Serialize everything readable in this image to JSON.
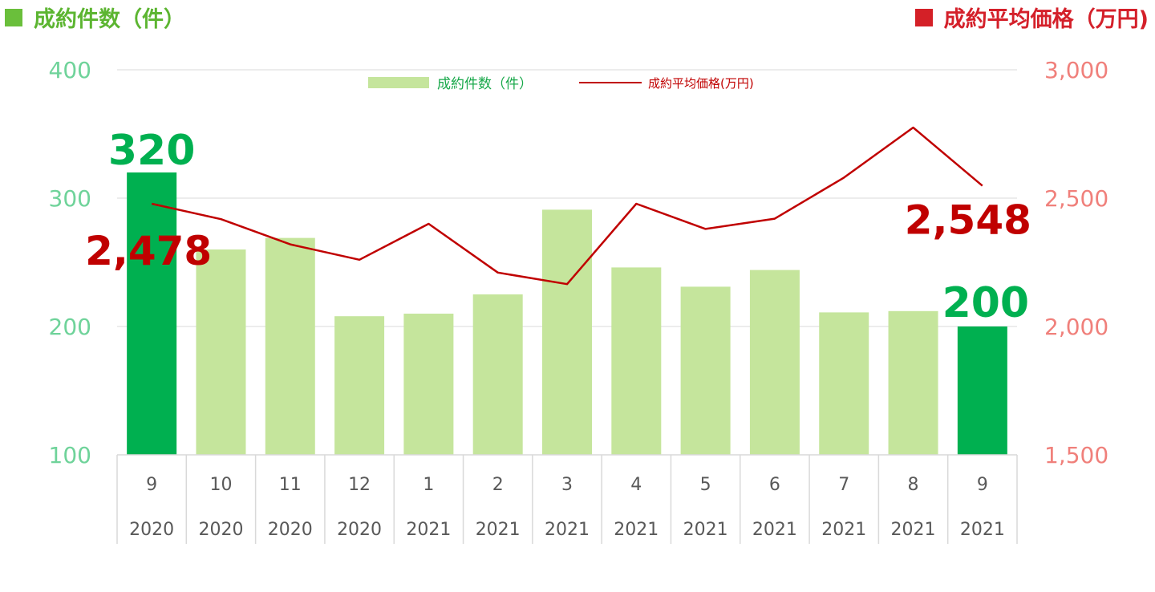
{
  "header": {
    "left_title": "成約件数（件）",
    "right_title": "成約平均価格（万円)"
  },
  "legend": {
    "bar_label": "成約件数（件）",
    "line_label": "成約平均価格(万円)"
  },
  "colors": {
    "bar": "#c5e59c",
    "bar_highlight": "#00b050",
    "line": "#c00000",
    "left_axis": "#6fd39a",
    "right_axis": "#f0807b",
    "label_green": "#00b050",
    "label_red": "#c00000"
  },
  "chart_data": {
    "type": "bar",
    "categories": [
      "9",
      "10",
      "11",
      "12",
      "1",
      "2",
      "3",
      "4",
      "5",
      "6",
      "7",
      "8",
      "9"
    ],
    "years": [
      "2020",
      "2020",
      "2020",
      "2020",
      "2021",
      "2021",
      "2021",
      "2021",
      "2021",
      "2021",
      "2021",
      "2021",
      "2021"
    ],
    "series": [
      {
        "name": "成約件数（件）",
        "type": "bar",
        "axis": "left",
        "values": [
          320,
          260,
          269,
          208,
          210,
          225,
          291,
          246,
          231,
          244,
          211,
          212,
          200
        ],
        "highlight": [
          true,
          false,
          false,
          false,
          false,
          false,
          false,
          false,
          false,
          false,
          false,
          false,
          true
        ]
      },
      {
        "name": "成約平均価格(万円)",
        "type": "line",
        "axis": "right",
        "values": [
          2478,
          2418,
          2320,
          2260,
          2400,
          2210,
          2165,
          2478,
          2380,
          2420,
          2580,
          2775,
          2548
        ]
      }
    ],
    "ylim_left": [
      100,
      400
    ],
    "yticks_left": [
      "100",
      "200",
      "300",
      "400"
    ],
    "ylim_right": [
      1500,
      3000
    ],
    "yticks_right": [
      "1,500",
      "2,000",
      "2,500",
      "3,000"
    ],
    "annotations": {
      "first_bar": "320",
      "last_bar": "200",
      "first_line": "2,478",
      "last_line": "2,548"
    },
    "grid": true,
    "legend_position": "top-center"
  }
}
